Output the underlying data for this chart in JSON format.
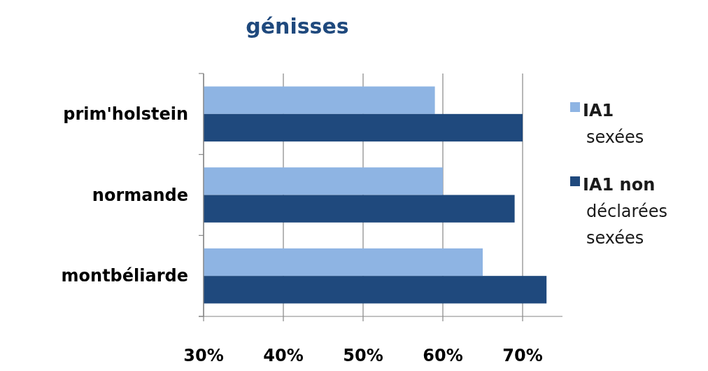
{
  "chart_data": {
    "type": "bar",
    "orientation": "horizontal",
    "title": "génisses",
    "categories": [
      "prim'holstein",
      "normande",
      "montbéliarde"
    ],
    "series": [
      {
        "name": "IA1 sexées",
        "color": "#8eb4e3",
        "values": [
          59,
          60,
          65
        ]
      },
      {
        "name": "IA1 non déclarées sexées",
        "color": "#1f497d",
        "values": [
          70,
          69,
          73
        ]
      }
    ],
    "xlim": [
      30,
      75
    ],
    "xticks": [
      {
        "value": 30,
        "label": "30%"
      },
      {
        "value": 40,
        "label": "40%"
      },
      {
        "value": 50,
        "label": "50%"
      },
      {
        "value": 60,
        "label": "60%"
      },
      {
        "value": 70,
        "label": "70%"
      }
    ],
    "grid": "x",
    "legend": "right"
  }
}
